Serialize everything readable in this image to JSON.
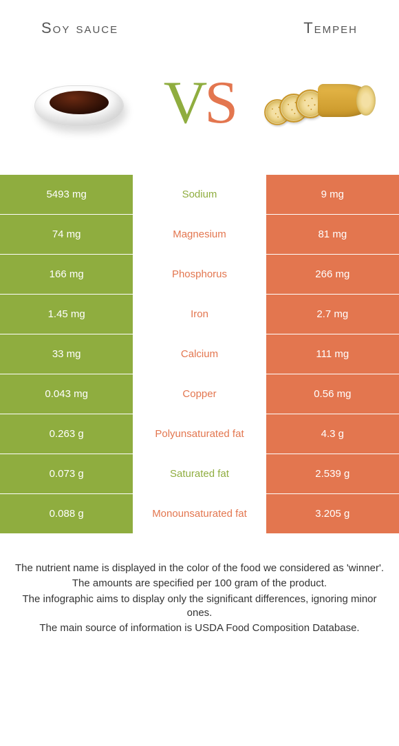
{
  "colors": {
    "left": "#8fad3f",
    "right": "#e3764f",
    "text": "#333333"
  },
  "foods": {
    "left": "Soy sauce",
    "right": "Tempeh"
  },
  "vs": {
    "v": "V",
    "s": "S"
  },
  "rows": [
    {
      "left": "5493 mg",
      "label": "Sodium",
      "right": "9 mg",
      "winner": "left"
    },
    {
      "left": "74 mg",
      "label": "Magnesium",
      "right": "81 mg",
      "winner": "right"
    },
    {
      "left": "166 mg",
      "label": "Phosphorus",
      "right": "266 mg",
      "winner": "right"
    },
    {
      "left": "1.45 mg",
      "label": "Iron",
      "right": "2.7 mg",
      "winner": "right"
    },
    {
      "left": "33 mg",
      "label": "Calcium",
      "right": "111 mg",
      "winner": "right"
    },
    {
      "left": "0.043 mg",
      "label": "Copper",
      "right": "0.56 mg",
      "winner": "right"
    },
    {
      "left": "0.263 g",
      "label": "Polyunsaturated fat",
      "right": "4.3 g",
      "winner": "right"
    },
    {
      "left": "0.073 g",
      "label": "Saturated fat",
      "right": "2.539 g",
      "winner": "left"
    },
    {
      "left": "0.088 g",
      "label": "Monounsaturated fat",
      "right": "3.205 g",
      "winner": "right"
    }
  ],
  "footnotes": [
    "The nutrient name is displayed in the color of the food we considered as 'winner'.",
    "The amounts are specified per 100 gram of the product.",
    "The infographic aims to display only the significant differences, ignoring minor ones.",
    "The main source of information is USDA Food Composition Database."
  ]
}
